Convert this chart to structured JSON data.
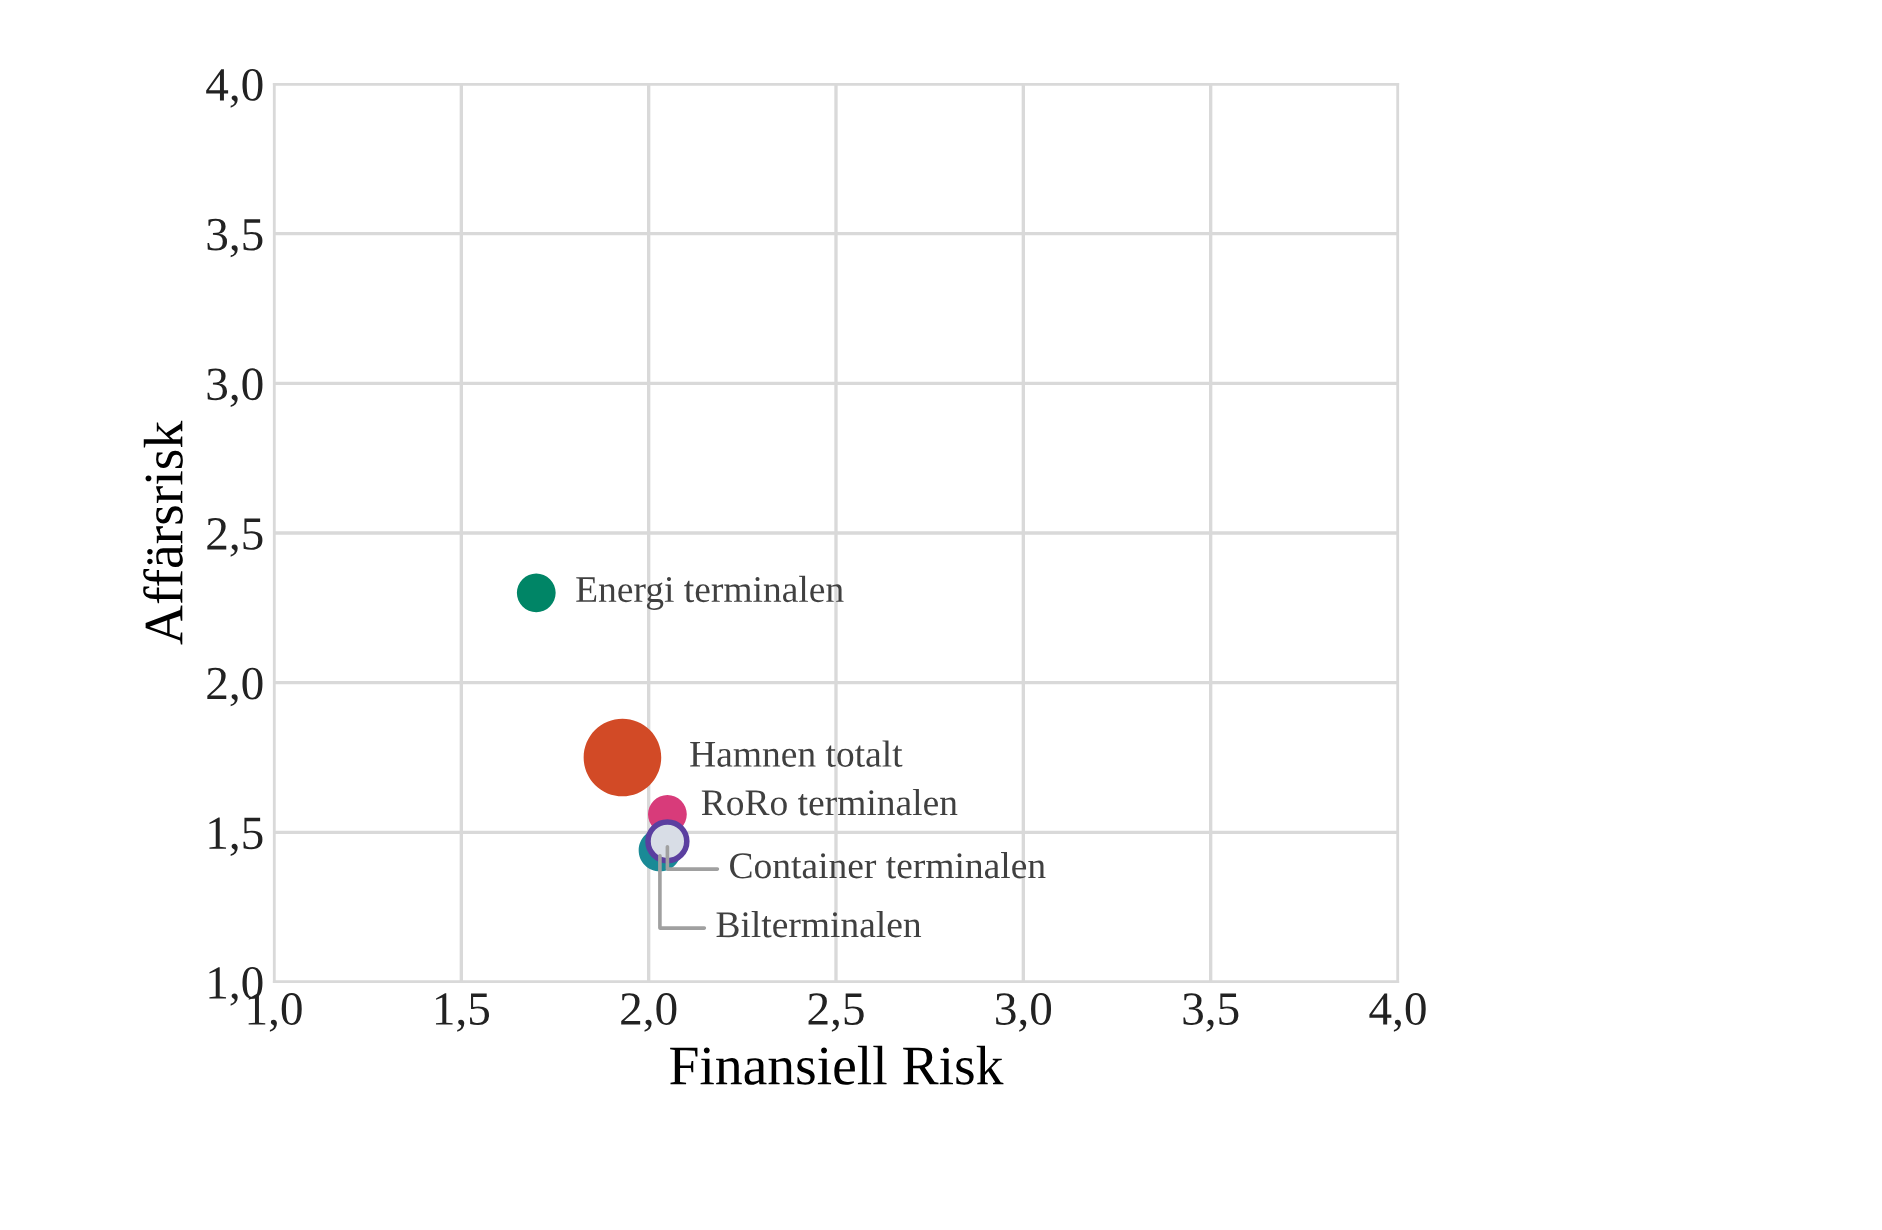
{
  "chart_data": {
    "type": "bubble",
    "xlabel": "Finansiell Risk",
    "ylabel": "Affärsrisk",
    "xlim": [
      1.0,
      4.0
    ],
    "xticks": [
      {
        "value": 1.0,
        "label": "1,0"
      },
      {
        "value": 1.5,
        "label": "1,5"
      },
      {
        "value": 2.0,
        "label": "2,0"
      },
      {
        "value": 2.5,
        "label": "2,5"
      },
      {
        "value": 3.0,
        "label": "3,0"
      },
      {
        "value": 3.5,
        "label": "3,5"
      },
      {
        "value": 4.0,
        "label": "4,0"
      }
    ],
    "ylim": [
      1.0,
      4.0
    ],
    "yticks": [
      {
        "value": 1.0,
        "label": "1,0"
      },
      {
        "value": 1.5,
        "label": "1,5"
      },
      {
        "value": 2.0,
        "label": "2,0"
      },
      {
        "value": 2.5,
        "label": "2,5"
      },
      {
        "value": 3.0,
        "label": "3,0"
      },
      {
        "value": 3.5,
        "label": "3,5"
      },
      {
        "value": 4.0,
        "label": "4,0"
      }
    ],
    "grid": true,
    "legend": false,
    "series": [
      {
        "name": "Energi terminalen",
        "color": "#008566",
        "x": [
          1.7
        ],
        "values": [
          2.3
        ],
        "sizes": [
          0.25
        ]
      },
      {
        "name": "Hamnen totalt",
        "color": "#d24a26",
        "x": [
          1.93
        ],
        "values": [
          1.75
        ],
        "sizes": [
          1
        ]
      },
      {
        "name": "RoRo terminalen",
        "color": "#d83b7a",
        "x": [
          2.05
        ],
        "values": [
          1.56
        ],
        "sizes": [
          0.25
        ]
      },
      {
        "name": "Bilterminalen",
        "color": "#1a8a96",
        "x": [
          2.03
        ],
        "values": [
          1.44
        ],
        "sizes": [
          0.3
        ]
      },
      {
        "name": "Container terminalen",
        "color": "#d8dde6",
        "x": [
          2.05
        ],
        "values": [
          1.47
        ],
        "sizes": [
          0.25
        ]
      }
    ]
  }
}
